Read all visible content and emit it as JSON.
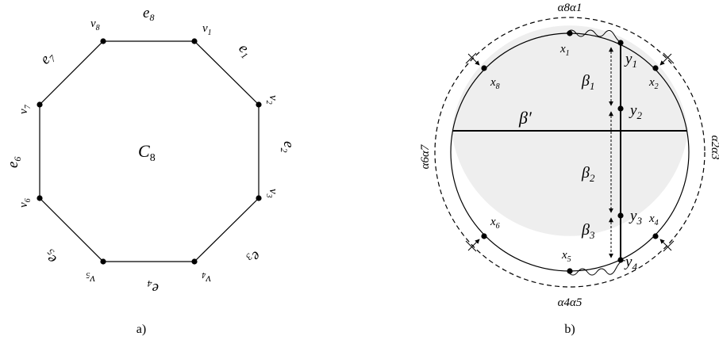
{
  "panel_a": {
    "caption": "a)",
    "center_label": "C",
    "center_sub": "8",
    "vertices": [
      {
        "base": "v",
        "sub": "1"
      },
      {
        "base": "v",
        "sub": "2"
      },
      {
        "base": "v",
        "sub": "3"
      },
      {
        "base": "v",
        "sub": "4"
      },
      {
        "base": "v",
        "sub": "5"
      },
      {
        "base": "v",
        "sub": "6"
      },
      {
        "base": "v",
        "sub": "7"
      },
      {
        "base": "v",
        "sub": "8"
      }
    ],
    "edges": [
      {
        "base": "e",
        "sub": "1"
      },
      {
        "base": "e",
        "sub": "2"
      },
      {
        "base": "e",
        "sub": "3"
      },
      {
        "base": "e",
        "sub": "4"
      },
      {
        "base": "e",
        "sub": "5"
      },
      {
        "base": "e",
        "sub": "6"
      },
      {
        "base": "e",
        "sub": "7"
      },
      {
        "base": "e",
        "sub": "8"
      }
    ]
  },
  "panel_b": {
    "caption": "b)",
    "x_labels": [
      {
        "base": "x",
        "sub": "1"
      },
      {
        "base": "x",
        "sub": "2"
      },
      {
        "base": "x",
        "sub": "4"
      },
      {
        "base": "x",
        "sub": "5"
      },
      {
        "base": "x",
        "sub": "6"
      },
      {
        "base": "x",
        "sub": "8"
      }
    ],
    "y_labels": [
      {
        "base": "y",
        "sub": "1"
      },
      {
        "base": "y",
        "sub": "2"
      },
      {
        "base": "y",
        "sub": "3"
      },
      {
        "base": "y",
        "sub": "4"
      }
    ],
    "beta_labels": [
      {
        "base": "β",
        "sub": "1"
      },
      {
        "base": "β",
        "sub": "2"
      },
      {
        "base": "β",
        "sub": "3"
      }
    ],
    "beta_prime": "β′",
    "alpha_labels": {
      "top": "α8α1",
      "right": "α2α3",
      "bottom": "α4α5",
      "left": "α6α7"
    }
  }
}
